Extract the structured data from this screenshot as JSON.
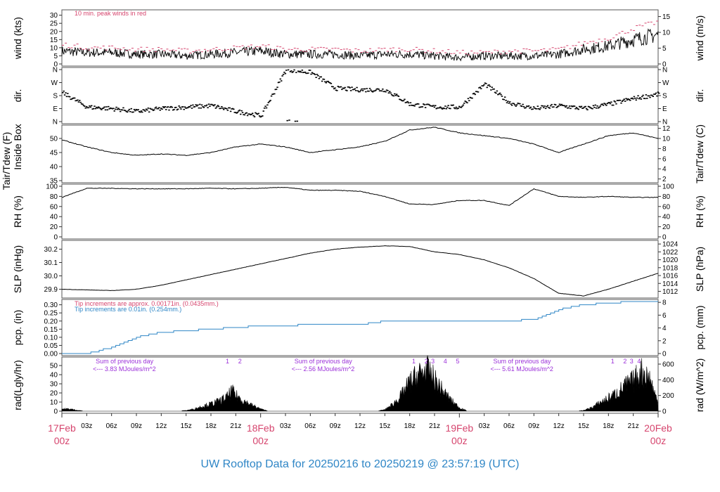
{
  "footer_title": "UW Rooftop Data for 20250216  to  20250219 @ 23:57:19  (UTC)",
  "colors": {
    "red": "#d6456e",
    "blue": "#2f86c6",
    "purple": "#9b30d9",
    "black": "#000000"
  },
  "x_axis": {
    "hour_ticks": [
      "03z",
      "06z",
      "09z",
      "12z",
      "15z",
      "18z",
      "21z"
    ],
    "day_ticks": [
      {
        "day": "17Feb",
        "hour": "00z"
      },
      {
        "day": "18Feb",
        "hour": "00z"
      },
      {
        "day": "19Feb",
        "hour": "00z"
      },
      {
        "day": "20Feb",
        "hour": "00z"
      }
    ]
  },
  "chart_data": [
    {
      "type": "line",
      "panel": "wind",
      "ylabel_left": "wind (kts)",
      "ylabel_right": "wind (m/s)",
      "note": "10 min. peak winds in red",
      "left_ticks": [
        0,
        5,
        10,
        15,
        20,
        25,
        30
      ],
      "right_ticks": [
        0,
        5,
        10,
        15
      ],
      "ylim": [
        0,
        32
      ],
      "x_hours": [
        0,
        3,
        6,
        9,
        12,
        15,
        18,
        21,
        24,
        27,
        30,
        33,
        36,
        39,
        42,
        45,
        48,
        51,
        54,
        57,
        60,
        63,
        66,
        69,
        72
      ],
      "series": [
        {
          "name": "wind",
          "values": [
            8,
            7,
            7,
            6,
            6,
            5,
            6,
            7,
            8,
            6,
            6,
            6,
            5,
            6,
            6,
            5,
            4,
            5,
            5,
            5,
            6,
            9,
            11,
            15,
            18
          ]
        },
        {
          "name": "10 min. peak winds",
          "values": [
            12,
            10,
            10,
            9,
            9,
            8,
            9,
            10,
            11,
            9,
            9,
            9,
            8,
            9,
            9,
            8,
            7,
            7,
            8,
            8,
            9,
            13,
            16,
            22,
            26
          ]
        }
      ]
    },
    {
      "type": "scatter",
      "panel": "dir",
      "ylabel_left": "dir.",
      "ylabel_right": "dir.",
      "tick_labels": [
        "N",
        "W",
        "S",
        "E",
        "N"
      ],
      "tick_degrees": [
        360,
        270,
        180,
        90,
        0
      ],
      "x_hours": [
        0,
        3,
        6,
        9,
        12,
        15,
        18,
        21,
        24,
        27,
        30,
        33,
        36,
        39,
        42,
        45,
        48,
        51,
        54,
        57,
        60,
        63,
        66,
        69,
        72
      ],
      "values": [
        200,
        100,
        90,
        70,
        90,
        100,
        110,
        70,
        40,
        360,
        340,
        230,
        220,
        220,
        120,
        100,
        100,
        260,
        130,
        90,
        110,
        90,
        120,
        160,
        190
      ]
    },
    {
      "type": "line",
      "panel": "temp",
      "ylabel_left": "Tair/Tdew (F)\nInside Box",
      "ylabel_right": "Tair/Tdew (C)",
      "left_ticks": [
        35,
        40,
        45,
        50
      ],
      "right_ticks": [
        2,
        4,
        6,
        8,
        10,
        12
      ],
      "ylim": [
        35,
        54
      ],
      "x_hours": [
        0,
        3,
        6,
        9,
        12,
        15,
        18,
        21,
        24,
        27,
        30,
        33,
        36,
        39,
        42,
        45,
        48,
        51,
        54,
        57,
        60,
        63,
        66,
        69,
        72
      ],
      "values": [
        49.5,
        47,
        45,
        44,
        44.5,
        44,
        45,
        47,
        48,
        47,
        45,
        46,
        47,
        49,
        53,
        54,
        52,
        51,
        50,
        48,
        45,
        48,
        51,
        52,
        50
      ]
    },
    {
      "type": "line",
      "panel": "rh",
      "ylabel_left": "RH (%)",
      "ylabel_right": "RH (%)",
      "left_ticks": [
        0,
        20,
        40,
        60,
        80,
        100
      ],
      "right_ticks": [
        0,
        20,
        40,
        60,
        80,
        100
      ],
      "ylim": [
        0,
        100
      ],
      "x_hours": [
        0,
        3,
        6,
        9,
        12,
        15,
        18,
        21,
        24,
        27,
        30,
        33,
        36,
        39,
        42,
        45,
        48,
        51,
        54,
        57,
        60,
        63,
        66,
        69,
        72
      ],
      "values": [
        78,
        96,
        96,
        95,
        95,
        95,
        96,
        95,
        96,
        98,
        92,
        92,
        90,
        80,
        65,
        64,
        72,
        72,
        62,
        95,
        80,
        78,
        80,
        78,
        78
      ]
    },
    {
      "type": "line",
      "panel": "slp",
      "ylabel_left": "SLP (inHg)",
      "ylabel_right": "SLP (hPa)",
      "left_ticks": [
        29.9,
        30.0,
        30.1,
        30.2
      ],
      "right_ticks": [
        1012,
        1014,
        1016,
        1018,
        1020,
        1022,
        1024
      ],
      "ylim": [
        29.85,
        30.25
      ],
      "x_hours": [
        0,
        3,
        6,
        9,
        12,
        15,
        18,
        21,
        24,
        27,
        30,
        33,
        36,
        39,
        42,
        45,
        48,
        51,
        54,
        57,
        60,
        63,
        66,
        69,
        72
      ],
      "values": [
        29.9,
        29.895,
        29.89,
        29.9,
        29.93,
        29.97,
        30.01,
        30.05,
        30.09,
        30.13,
        30.17,
        30.2,
        30.215,
        30.225,
        30.22,
        30.18,
        30.16,
        30.12,
        30.06,
        29.98,
        29.87,
        29.85,
        29.9,
        29.96,
        30.02
      ]
    },
    {
      "type": "line",
      "panel": "pcp",
      "ylabel_left": "pcp. (in)",
      "ylabel_right": "pcp. (mm)",
      "notes": [
        {
          "text": "Tip increments are approx. 0.00171in. (0.0435mm.)",
          "color": "red"
        },
        {
          "text": "Tip increments are 0.01in. (0.254mm.)",
          "color": "blue"
        }
      ],
      "left_ticks": [
        0.0,
        0.05,
        0.1,
        0.15,
        0.2,
        0.25,
        0.3
      ],
      "right_ticks": [
        0,
        2,
        4,
        6,
        8
      ],
      "ylim": [
        0,
        0.32
      ],
      "x_hours": [
        0,
        3,
        6,
        9,
        12,
        15,
        18,
        21,
        24,
        27,
        30,
        33,
        36,
        39,
        42,
        45,
        48,
        51,
        54,
        57,
        60,
        63,
        66,
        69,
        72
      ],
      "values": [
        0.0,
        0.0,
        0.04,
        0.1,
        0.13,
        0.14,
        0.15,
        0.16,
        0.17,
        0.17,
        0.18,
        0.18,
        0.18,
        0.2,
        0.2,
        0.2,
        0.2,
        0.2,
        0.2,
        0.21,
        0.27,
        0.3,
        0.31,
        0.32,
        0.32
      ]
    },
    {
      "type": "area",
      "panel": "rad",
      "ylabel_left": "rad(Lgly/hr)",
      "ylabel_right": "rad (W/m^2)",
      "left_ticks": [
        0,
        10,
        20,
        30,
        40,
        50
      ],
      "right_ticks": [
        0,
        200,
        400,
        600
      ],
      "ylim": [
        0,
        57
      ],
      "x_hours": [
        0,
        1,
        2,
        3,
        14,
        15,
        16,
        17,
        18,
        19,
        20,
        20.5,
        21,
        22,
        23,
        24,
        25,
        38,
        39,
        40,
        41,
        42,
        43,
        44,
        45,
        46,
        47,
        48,
        49,
        62,
        63,
        64,
        65,
        66,
        67,
        68,
        69,
        70,
        71,
        72
      ],
      "values": [
        3,
        3,
        1,
        0,
        0,
        1,
        3,
        7,
        10,
        14,
        20,
        28,
        22,
        14,
        8,
        3,
        0,
        0,
        2,
        10,
        22,
        40,
        50,
        58,
        44,
        28,
        15,
        5,
        0,
        0,
        1,
        5,
        12,
        18,
        25,
        35,
        42,
        55,
        45,
        10
      ],
      "daily_sums": [
        {
          "label": "Sum of previous day",
          "value": "<--- 3.83 MJoules/m^2"
        },
        {
          "label": "Sum of previous day",
          "value": "<--- 2.56 MJoules/m^2"
        },
        {
          "label": "Sum of previous day",
          "value": "<--- 5.61 MJoules/m^2"
        }
      ],
      "peak_markers": [
        {
          "day": 0,
          "labels": [
            "1",
            "2"
          ]
        },
        {
          "day": 1,
          "labels": [
            "1",
            "2",
            "3",
            "4",
            "5"
          ]
        },
        {
          "day": 2,
          "labels": [
            "1",
            "2",
            "3",
            "4"
          ]
        }
      ]
    }
  ]
}
